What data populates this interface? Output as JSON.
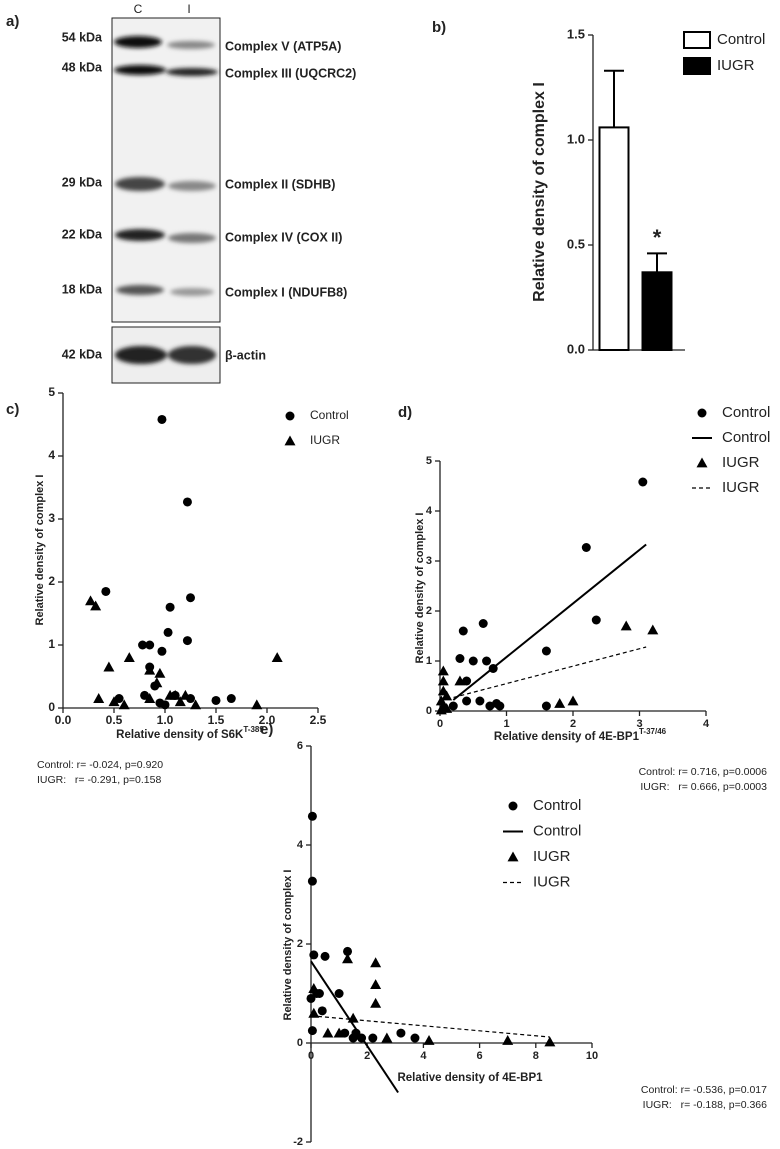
{
  "blot": {
    "label": "a)",
    "lanes": [
      "C",
      "I"
    ],
    "rows": [
      {
        "size": "54 kDa",
        "name": "Complex V (ATP5A)"
      },
      {
        "size": "48 kDa",
        "name": "Complex III (UQCRC2)"
      },
      {
        "size": "29 kDa",
        "name": "Complex II (SDHB)"
      },
      {
        "size": "22 kDa",
        "name": "Complex IV (COX II)"
      },
      {
        "size": "18 kDa",
        "name": "Complex I (NDUFB8)"
      },
      {
        "size": "42 kDa",
        "name": "β-actin"
      }
    ]
  },
  "chart_data": [
    {
      "type": "bar",
      "label": "b)",
      "ylabel": "Relative density of complex I",
      "ylim": [
        0,
        1.5
      ],
      "yticks": [
        {
          "value": 0,
          "label": "0.0"
        },
        0.5,
        {
          "value": 1,
          "label": "1.0"
        },
        1.5
      ],
      "series": [
        {
          "name": "Control",
          "color": "#ffffff",
          "values": [
            1.06
          ],
          "errors": [
            0.27
          ]
        },
        {
          "name": "IUGR",
          "color": "#000000",
          "values": [
            0.37
          ],
          "errors": [
            0.09
          ]
        }
      ],
      "annotations": [
        "*"
      ]
    },
    {
      "type": "scatter",
      "label": "c)",
      "ylabel": "Relative density of complex I",
      "xlabel": "Relative density of S6K",
      "xlabel_sup": "T-389",
      "xlim": [
        0,
        2.5
      ],
      "xticks": [
        {
          "value": 0,
          "label": "0.0"
        },
        0.5,
        {
          "value": 1,
          "label": "1.0"
        },
        1.5,
        {
          "value": 2,
          "label": "2.0"
        },
        2.5
      ],
      "ylim": [
        0,
        5
      ],
      "yticks": [
        0,
        1,
        2,
        3,
        4,
        5
      ],
      "series": [
        {
          "name": "Control",
          "marker": "circle",
          "color": "#000000",
          "x": [
            0.97,
            1.22,
            1.25,
            0.42,
            1.05,
            1.03,
            1.22,
            0.78,
            0.85,
            0.97,
            0.85,
            0.9,
            0.8,
            0.55,
            1.1,
            1.25,
            1.65,
            0.95,
            1.0,
            1.5
          ],
          "values": [
            4.58,
            3.27,
            1.75,
            1.85,
            1.6,
            1.2,
            1.07,
            1.0,
            1.0,
            0.9,
            0.65,
            0.35,
            0.2,
            0.15,
            0.2,
            0.15,
            0.15,
            0.08,
            0.05,
            0.12
          ]
        },
        {
          "name": "IUGR",
          "marker": "triangle",
          "color": "#000000",
          "x": [
            0.27,
            0.32,
            0.45,
            0.65,
            0.85,
            0.95,
            0.92,
            0.35,
            0.5,
            0.85,
            1.05,
            1.1,
            1.2,
            1.3,
            1.9,
            2.1,
            1.15,
            0.6
          ],
          "values": [
            1.7,
            1.62,
            0.65,
            0.8,
            0.6,
            0.55,
            0.4,
            0.15,
            0.1,
            0.15,
            0.2,
            0.2,
            0.2,
            0.05,
            0.05,
            0.8,
            0.1,
            0.05
          ]
        }
      ],
      "annotations": [
        "Control: r= -0.024, p=0.920",
        "IUGR:   r= -0.291, p=0.158"
      ]
    },
    {
      "type": "scatter",
      "label": "d)",
      "ylabel": "Relative density of complex I",
      "xlabel": "Relative density of 4E-BP1",
      "xlabel_sup": "T-37/46",
      "xlim": [
        0,
        4
      ],
      "xticks": [
        0,
        1,
        2,
        3,
        4
      ],
      "ylim": [
        0,
        5
      ],
      "yticks": [
        0,
        1,
        2,
        3,
        4,
        5
      ],
      "series": [
        {
          "name": "Control",
          "marker": "circle",
          "color": "#000000",
          "x": [
            3.05,
            2.2,
            2.35,
            1.6,
            0.35,
            0.65,
            0.5,
            0.3,
            0.7,
            0.8,
            0.4,
            0.6,
            0.75,
            0.85,
            0.9,
            0.4,
            1.6,
            0.2
          ],
          "values": [
            4.58,
            3.27,
            1.82,
            1.2,
            1.6,
            1.75,
            1.0,
            1.05,
            1.0,
            0.85,
            0.6,
            0.2,
            0.1,
            0.15,
            0.1,
            0.2,
            0.1,
            0.1
          ]
        },
        {
          "name": "Control",
          "line": "solid",
          "color": "#000000",
          "x": [
            0.2,
            3.1
          ],
          "values": [
            0.22,
            3.33
          ]
        },
        {
          "name": "IUGR",
          "marker": "triangle",
          "color": "#000000",
          "x": [
            2.8,
            3.2,
            0.05,
            0.05,
            0.3,
            0.05,
            0.1,
            0.02,
            0.05,
            1.8,
            2.0,
            0.1,
            0.02
          ],
          "values": [
            1.7,
            1.62,
            0.8,
            0.6,
            0.6,
            0.4,
            0.3,
            0.2,
            0.1,
            0.15,
            0.2,
            0.05,
            0.02
          ]
        },
        {
          "name": "IUGR",
          "line": "dashed",
          "color": "#000000",
          "x": [
            0,
            3.1
          ],
          "values": [
            0.2,
            1.28
          ]
        }
      ],
      "annotations": [
        "Control: r= 0.716, p=0.0006",
        "IUGR:   r= 0.666, p=0.0003"
      ]
    },
    {
      "type": "scatter",
      "label": "e)",
      "ylabel": "Relative density of complex I",
      "xlabel": "Relative density of 4E-BP1",
      "axes_at_zero": true,
      "xlim": [
        0,
        10
      ],
      "xticks": [
        0,
        2,
        4,
        6,
        8,
        10
      ],
      "ylim": [
        -2,
        6
      ],
      "yticks": [
        -2,
        0,
        2,
        4,
        6
      ],
      "series": [
        {
          "name": "Control",
          "marker": "circle",
          "color": "#000000",
          "x": [
            0.05,
            0.05,
            0.1,
            0.5,
            1.3,
            0.2,
            0.3,
            1.0,
            0.4,
            0.0,
            1.2,
            1.5,
            2.2,
            3.7,
            3.2,
            1.8,
            0.05,
            1.6
          ],
          "values": [
            4.58,
            3.27,
            1.78,
            1.75,
            1.85,
            1.0,
            1.0,
            1.0,
            0.65,
            0.9,
            0.2,
            0.1,
            0.1,
            0.1,
            0.2,
            0.1,
            0.25,
            0.2
          ]
        },
        {
          "name": "Control",
          "line": "solid",
          "color": "#000000",
          "x": [
            0,
            3.1
          ],
          "values": [
            1.65,
            -1.0
          ]
        },
        {
          "name": "IUGR",
          "marker": "triangle",
          "color": "#000000",
          "x": [
            1.3,
            2.3,
            2.3,
            2.3,
            1.5,
            0.1,
            0.6,
            1.0,
            2.7,
            4.2,
            7.0,
            8.5,
            0.1
          ],
          "values": [
            1.7,
            1.62,
            1.18,
            0.8,
            0.5,
            0.6,
            0.2,
            0.2,
            0.1,
            0.05,
            0.05,
            0.02,
            1.1
          ]
        },
        {
          "name": "IUGR",
          "line": "dashed",
          "color": "#000000",
          "x": [
            0,
            8.5
          ],
          "values": [
            0.55,
            0.12
          ]
        }
      ],
      "annotations": [
        "Control: r= -0.536, p=0.017",
        "IUGR:   r= -0.188, p=0.366"
      ]
    }
  ]
}
